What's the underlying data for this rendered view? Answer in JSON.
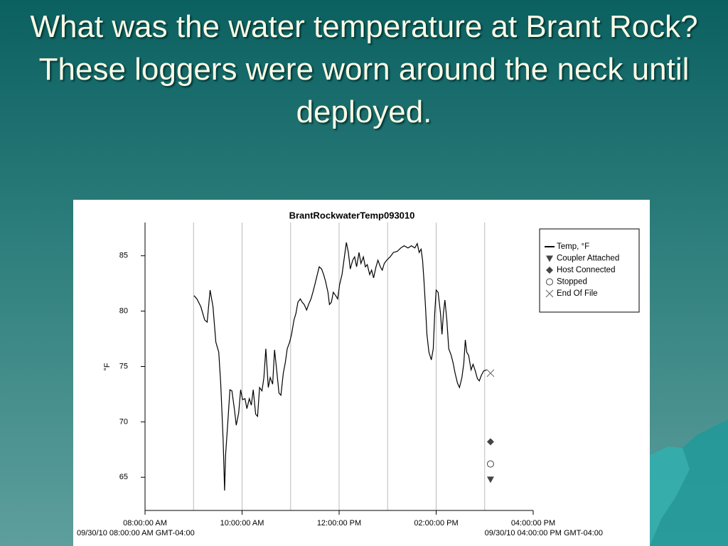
{
  "title": "What was the water temperature at Brant Rock?  These loggers were worn around the neck until deployed.",
  "chart_data": {
    "type": "line",
    "title": "BrantRockwaterTemp093010",
    "ylabel": "°F",
    "start_label": "09/30/10 08:00:00 AM GMT-04:00",
    "end_label": "09/30/10 04:00:00 PM GMT-04:00",
    "xlim": [
      8,
      16
    ],
    "ylim": [
      62,
      88
    ],
    "xticks": [
      {
        "value": 8,
        "label": "08:00:00 AM"
      },
      {
        "value": 10,
        "label": "10:00:00 AM"
      },
      {
        "value": 12,
        "label": "12:00:00 PM"
      },
      {
        "value": 14,
        "label": "02:00:00 PM"
      },
      {
        "value": 16,
        "label": "04:00:00 PM"
      }
    ],
    "yticks": [
      65,
      70,
      75,
      80,
      85
    ],
    "xgrid": [
      9,
      10,
      11,
      12,
      13,
      14,
      15
    ],
    "legend": "upper right",
    "series": [
      {
        "name": "Temp, °F",
        "color": "#000000",
        "marker": "line",
        "x": [
          9.01,
          9.07,
          9.15,
          9.23,
          9.28,
          9.34,
          9.4,
          9.46,
          9.52,
          9.56,
          9.61,
          9.64,
          9.66,
          9.71,
          9.75,
          9.79,
          9.84,
          9.88,
          9.93,
          9.97,
          10.01,
          10.06,
          10.1,
          10.15,
          10.19,
          10.23,
          10.28,
          10.32,
          10.36,
          10.41,
          10.45,
          10.49,
          10.54,
          10.58,
          10.63,
          10.67,
          10.72,
          10.76,
          10.8,
          10.85,
          10.89,
          10.93,
          10.98,
          11.02,
          11.07,
          11.11,
          11.15,
          11.2,
          11.24,
          11.28,
          11.33,
          11.37,
          11.42,
          11.46,
          11.5,
          11.55,
          11.59,
          11.64,
          11.68,
          11.72,
          11.77,
          11.8,
          11.84,
          11.88,
          11.93,
          11.97,
          12.01,
          12.06,
          12.1,
          12.15,
          12.19,
          12.23,
          12.28,
          12.32,
          12.36,
          12.41,
          12.45,
          12.5,
          12.54,
          12.58,
          12.63,
          12.67,
          12.71,
          12.76,
          12.8,
          12.85,
          12.89,
          12.93,
          12.98,
          13.05,
          13.12,
          13.2,
          13.27,
          13.34,
          13.42,
          13.49,
          13.56,
          13.61,
          13.65,
          13.69,
          13.72,
          13.75,
          13.78,
          13.81,
          13.85,
          13.9,
          13.94,
          13.97,
          14.0,
          14.04,
          14.09,
          14.12,
          14.15,
          14.18,
          14.22,
          14.26,
          14.31,
          14.35,
          14.39,
          14.44,
          14.48,
          14.53,
          14.57,
          14.6,
          14.63,
          14.67,
          14.72,
          14.76,
          14.8,
          14.85,
          14.89,
          14.93,
          14.98,
          15.04
        ],
        "values": [
          81.4,
          81.1,
          80.4,
          79.2,
          79.0,
          81.9,
          80.4,
          77.2,
          76.3,
          73.4,
          68.3,
          63.8,
          67.0,
          70.2,
          72.9,
          72.8,
          71.2,
          69.7,
          70.8,
          72.9,
          72.0,
          72.1,
          71.2,
          72.1,
          71.5,
          72.9,
          70.7,
          70.5,
          73.1,
          72.8,
          74.0,
          76.6,
          73.1,
          74.0,
          73.4,
          76.5,
          74.4,
          72.6,
          72.4,
          74.4,
          75.3,
          76.6,
          77.2,
          77.9,
          79.2,
          79.8,
          80.8,
          81.1,
          80.8,
          80.6,
          80.1,
          80.6,
          81.1,
          81.7,
          82.4,
          83.3,
          84.0,
          83.8,
          83.3,
          82.7,
          81.7,
          80.6,
          80.8,
          81.7,
          81.4,
          81.1,
          82.4,
          83.3,
          84.6,
          86.2,
          85.3,
          83.8,
          84.6,
          84.9,
          84.0,
          85.3,
          84.3,
          84.9,
          84.0,
          84.2,
          83.3,
          83.7,
          83.0,
          84.0,
          84.6,
          84.0,
          83.7,
          84.3,
          84.6,
          84.9,
          85.3,
          85.4,
          85.7,
          85.9,
          85.7,
          85.9,
          85.7,
          86.1,
          85.3,
          85.6,
          84.6,
          82.7,
          80.4,
          77.9,
          76.3,
          75.6,
          76.6,
          79.8,
          81.9,
          81.7,
          79.8,
          77.9,
          79.8,
          81.0,
          79.2,
          76.6,
          76.0,
          75.3,
          74.4,
          73.5,
          73.1,
          74.0,
          75.3,
          77.4,
          76.3,
          76.0,
          74.7,
          75.2,
          74.7,
          73.9,
          73.7,
          74.2,
          74.6,
          74.7
        ]
      },
      {
        "name": "Coupler Attached",
        "color": "#444444",
        "marker": "triangle",
        "x": [
          15.12
        ],
        "values": [
          64.8
        ]
      },
      {
        "name": "Host Connected",
        "color": "#444444",
        "marker": "diamond",
        "x": [
          15.12
        ],
        "values": [
          68.2
        ]
      },
      {
        "name": "Stopped",
        "color": "#444444",
        "marker": "circle",
        "x": [
          15.12
        ],
        "values": [
          66.2
        ]
      },
      {
        "name": "End Of File",
        "color": "#666666",
        "marker": "x",
        "x": [
          15.12
        ],
        "values": [
          74.4
        ]
      }
    ]
  }
}
